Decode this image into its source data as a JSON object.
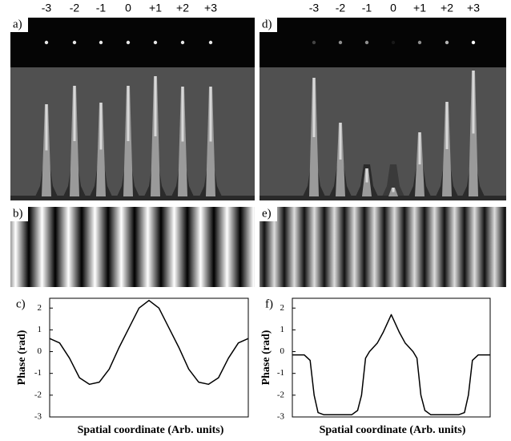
{
  "panel_labels": [
    "a)",
    "b)",
    "c)",
    "d)",
    "e)",
    "f)"
  ],
  "orders": [
    "-3",
    "-2",
    "-1",
    "0",
    "+1",
    "+2",
    "+3"
  ],
  "chart_data": [
    {
      "type": "line",
      "ylabel": "Phase (rad)",
      "xlabel": "Spatial coordinate (Arb. units)",
      "color": "#000000",
      "x": [
        0,
        0.05,
        0.1,
        0.15,
        0.2,
        0.25,
        0.3,
        0.35,
        0.4,
        0.45,
        0.5,
        0.55,
        0.6,
        0.65,
        0.7,
        0.75,
        0.8,
        0.85,
        0.9,
        0.95,
        1
      ],
      "values": [
        0.6,
        0.4,
        -0.3,
        -1.2,
        -1.5,
        -1.4,
        -0.8,
        0.2,
        1.1,
        2.0,
        2.35,
        2.0,
        1.1,
        0.2,
        -0.8,
        -1.4,
        -1.5,
        -1.2,
        -0.3,
        0.4,
        0.6
      ],
      "xlim": [
        0,
        1
      ],
      "ylim": [
        -3,
        2.45
      ],
      "yticks": [
        2,
        1,
        0,
        -1,
        -2,
        -3
      ]
    },
    {
      "type": "line",
      "ylabel": "Phase (rad)",
      "xlabel": "Spatial coordinate (Arb. units)",
      "color": "#000000",
      "x": [
        0,
        0.06,
        0.09,
        0.11,
        0.13,
        0.16,
        0.3,
        0.33,
        0.35,
        0.37,
        0.39,
        0.43,
        0.46,
        0.5,
        0.54,
        0.57,
        0.61,
        0.63,
        0.65,
        0.67,
        0.7,
        0.84,
        0.87,
        0.89,
        0.91,
        0.94,
        1
      ],
      "values": [
        -0.15,
        -0.15,
        -0.4,
        -2.0,
        -2.8,
        -2.9,
        -2.9,
        -2.7,
        -2.0,
        -0.3,
        0.0,
        0.4,
        0.9,
        1.7,
        0.9,
        0.4,
        0.0,
        -0.3,
        -2.0,
        -2.7,
        -2.9,
        -2.9,
        -2.8,
        -2.0,
        -0.4,
        -0.15,
        -0.15
      ],
      "xlim": [
        0,
        1
      ],
      "ylim": [
        -3,
        2.45
      ],
      "yticks": [
        2,
        1,
        0,
        -1,
        -2,
        -3
      ]
    }
  ]
}
